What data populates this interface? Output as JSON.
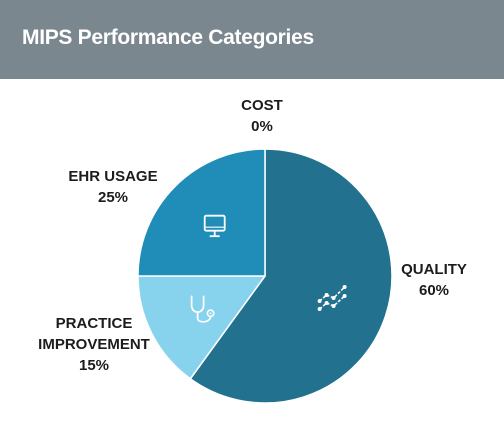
{
  "header": {
    "title": "MIPS Performance Categories"
  },
  "chart_data": {
    "type": "pie",
    "title": "MIPS Performance Categories",
    "slices": [
      {
        "label": "QUALITY",
        "value": 60,
        "value_label": "60%",
        "color": "#21718f",
        "icon": "trend-line-icon"
      },
      {
        "label": "PRACTICE IMPROVEMENT",
        "label_lines": [
          "PRACTICE",
          "IMPROVEMENT"
        ],
        "value": 15,
        "value_label": "15%",
        "color": "#87d3ee",
        "icon": "stethoscope-icon"
      },
      {
        "label": "EHR USAGE",
        "value": 25,
        "value_label": "25%",
        "color": "#1f8db8",
        "icon": "computer-monitor-icon"
      },
      {
        "label": "COST",
        "value": 0,
        "value_label": "0%",
        "color": "#21718f",
        "icon": ""
      }
    ],
    "start_angle": "top (12 o'clock)",
    "direction": "clockwise",
    "slice_border_color": "#ffffff"
  }
}
